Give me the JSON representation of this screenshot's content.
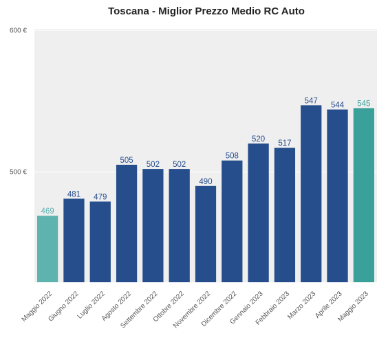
{
  "chart_data": {
    "type": "bar",
    "title": "Toscana - Miglior Prezzo Medio RC Auto",
    "xlabel": "",
    "ylabel": "",
    "categories": [
      "Maggio 2022",
      "Giugno 2022",
      "Luglio 2022",
      "Agosto 2022",
      "Settembre 2022",
      "Ottobre 2022",
      "Novembre 2022",
      "Dicembre 2022",
      "Gennaio 2023",
      "Febbraio 2023",
      "Marzo 2023",
      "Aprile 2023",
      "Maggio 2023"
    ],
    "values": [
      469,
      481,
      479,
      505,
      502,
      502,
      490,
      508,
      520,
      517,
      547,
      544,
      545
    ],
    "value_labels": [
      "469",
      "481",
      "479",
      "505",
      "502",
      "502",
      "490",
      "508",
      "520",
      "517",
      "547",
      "544",
      "545"
    ],
    "y_ticks": [
      500,
      600
    ],
    "y_tick_labels": [
      "500 €",
      "600 €"
    ],
    "ylim": [
      422,
      601
    ],
    "grid": true,
    "legend": "none",
    "colors": {
      "bar": "#264d8c",
      "bar_first": "#5fb3ae",
      "bar_last": "#3aa09a",
      "label": "#264d8c",
      "label_first": "#5fb3ae",
      "label_last": "#3aa09a",
      "plot_background": "#efefef",
      "gridline": "#ffffff"
    }
  }
}
